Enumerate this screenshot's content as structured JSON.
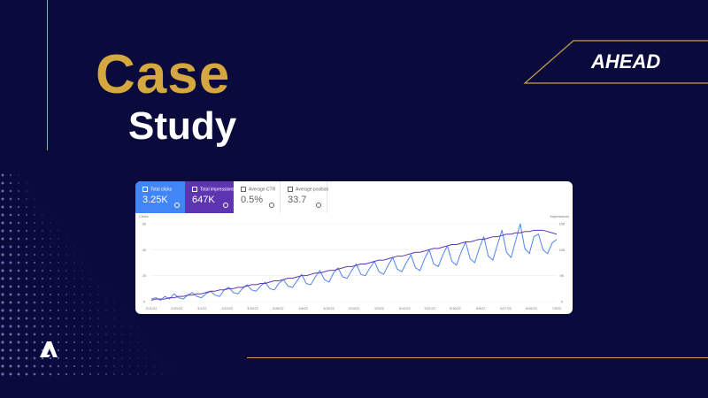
{
  "title": {
    "line1": "Case",
    "line2": "Study"
  },
  "brand": {
    "name": "AHEAD"
  },
  "colors": {
    "background": "#0b0a3d",
    "gold": "#d4a73f",
    "clicks": "#4f84f0",
    "impressions": "#5e35b1"
  },
  "metrics": [
    {
      "label": "Total clicks",
      "value": "3.25K",
      "active": true,
      "color": "#4285f4"
    },
    {
      "label": "Total impressions",
      "value": "647K",
      "active": true,
      "color": "#5e35b1"
    },
    {
      "label": "Average CTR",
      "value": "0.5%",
      "active": false,
      "color": "#ffffff"
    },
    {
      "label": "Average position",
      "value": "33.7",
      "active": false,
      "color": "#ffffff"
    }
  ],
  "chart_data": {
    "type": "line",
    "left_axis_label": "Clicks",
    "right_axis_label": "Impressions",
    "left_ticks": [
      "60",
      "40",
      "20",
      "0"
    ],
    "right_ticks": [
      "15K",
      "10K",
      "5K",
      "0"
    ],
    "x_ticks": [
      "2/11/22",
      "2/20/22",
      "3/1/22",
      "3/10/22",
      "3/19/22",
      "3/28/22",
      "4/6/22",
      "4/15/22",
      "4/24/22",
      "5/3/22",
      "5/12/22",
      "5/21/22",
      "5/30/22",
      "6/8/22",
      "6/17/22",
      "6/26/22",
      "7/5/22"
    ],
    "series": [
      {
        "name": "Clicks",
        "values": [
          2,
          3,
          1,
          4,
          2,
          6,
          3,
          2,
          5,
          7,
          4,
          3,
          6,
          8,
          5,
          4,
          9,
          11,
          7,
          6,
          10,
          13,
          9,
          8,
          12,
          15,
          10,
          9,
          14,
          17,
          12,
          11,
          16,
          21,
          14,
          13,
          19,
          24,
          17,
          15,
          22,
          26,
          19,
          18,
          24,
          29,
          21,
          20,
          26,
          31,
          23,
          21,
          28,
          34,
          25,
          23,
          30,
          36,
          26,
          24,
          33,
          40,
          29,
          27,
          36,
          43,
          31,
          28,
          38,
          46,
          33,
          30,
          41,
          50,
          35,
          32,
          44,
          55,
          38,
          34,
          47,
          60,
          41,
          37,
          50,
          52,
          40,
          37,
          45,
          48
        ]
      },
      {
        "name": "Impressions",
        "values": [
          1,
          2,
          2,
          2,
          3,
          3,
          4,
          4,
          5,
          5,
          6,
          6,
          7,
          8,
          8,
          9,
          9,
          10,
          10,
          11,
          11,
          12,
          13,
          13,
          14,
          14,
          15,
          16,
          16,
          17,
          18,
          18,
          19,
          20,
          20,
          21,
          22,
          22,
          23,
          24,
          24,
          25,
          26,
          27,
          27,
          28,
          29,
          29,
          30,
          31,
          32,
          32,
          33,
          34,
          35,
          35,
          36,
          37,
          38,
          38,
          39,
          40,
          41,
          41,
          42,
          43,
          44,
          44,
          45,
          46,
          46,
          47,
          48,
          48,
          49,
          50,
          50,
          51,
          52,
          52,
          53,
          53,
          54,
          54,
          55,
          55,
          55,
          54,
          53,
          52
        ]
      }
    ],
    "ylim": [
      0,
      60
    ]
  }
}
